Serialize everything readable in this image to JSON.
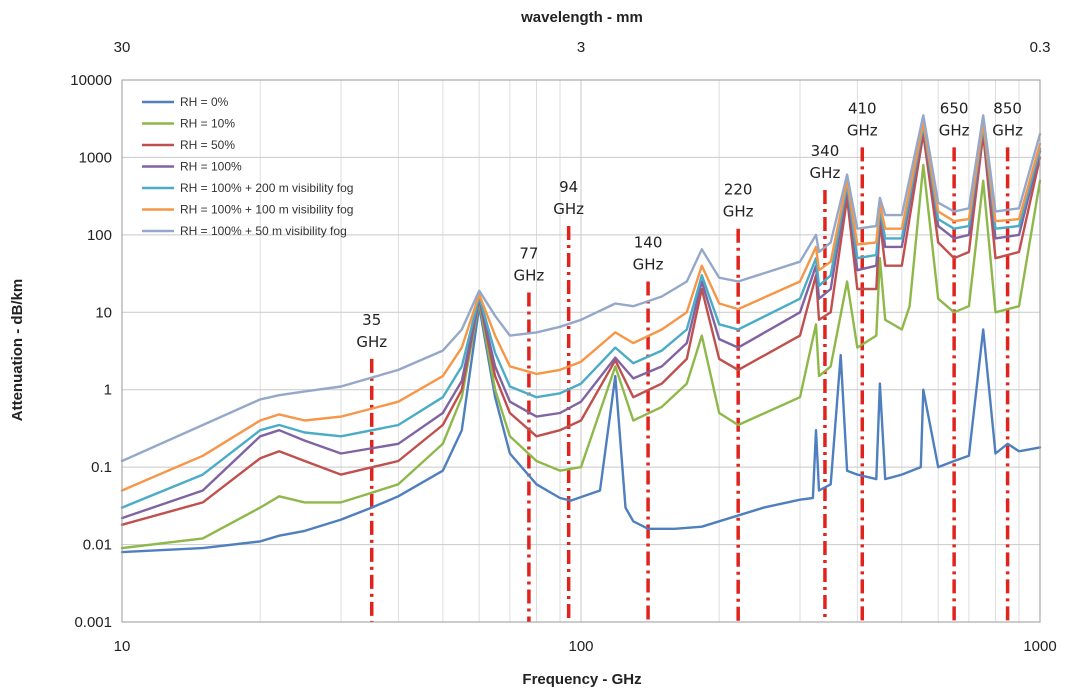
{
  "chart_data": {
    "type": "line",
    "title": "",
    "xlabel": "Frequency - GHz",
    "ylabel": "Attenuation - dB/km",
    "top_axis_label": "wavelength - mm",
    "x_scale": "log",
    "y_scale": "log",
    "xlim": [
      10,
      1000
    ],
    "ylim": [
      0.001,
      10000
    ],
    "x_ticks": [
      "10",
      "100",
      "1000"
    ],
    "y_ticks": [
      "0.001",
      "0.01",
      "0.1",
      "1",
      "10",
      "100",
      "1000",
      "10000"
    ],
    "top_ticks": [
      {
        "label": "30",
        "freq": 10
      },
      {
        "label": "3",
        "freq": 100
      },
      {
        "label": "0.3",
        "freq": 1000
      }
    ],
    "grid": true,
    "legend_position": "top-left",
    "series": [
      {
        "name": "RH = 0%",
        "color": "#4f7fbf",
        "x": [
          10,
          15,
          20,
          22,
          25,
          30,
          35,
          40,
          50,
          55,
          60,
          65,
          70,
          80,
          90,
          95,
          110,
          118.75,
          125,
          130,
          140,
          160,
          183.3,
          200,
          250,
          300,
          320,
          325,
          330,
          350,
          368,
          380,
          400,
          440,
          448,
          460,
          500,
          550,
          557,
          600,
          650,
          700,
          752,
          800,
          850,
          900,
          1000
        ],
        "y": [
          0.008,
          0.009,
          0.011,
          0.013,
          0.015,
          0.021,
          0.03,
          0.042,
          0.09,
          0.3,
          12,
          0.8,
          0.15,
          0.06,
          0.04,
          0.037,
          0.05,
          1.5,
          0.03,
          0.02,
          0.016,
          0.016,
          0.017,
          0.02,
          0.03,
          0.038,
          0.04,
          0.3,
          0.05,
          0.06,
          2.8,
          0.09,
          0.08,
          0.07,
          1.2,
          0.07,
          0.08,
          0.1,
          1.0,
          0.1,
          0.12,
          0.14,
          6,
          0.15,
          0.2,
          0.16,
          0.18
        ]
      },
      {
        "name": "RH = 10%",
        "color": "#8fb84b",
        "x": [
          10,
          15,
          20,
          22,
          25,
          30,
          40,
          50,
          55,
          60,
          65,
          70,
          80,
          90,
          100,
          118.75,
          130,
          150,
          170,
          183.3,
          200,
          220,
          300,
          325,
          330,
          350,
          380,
          400,
          440,
          448,
          460,
          500,
          520,
          557,
          600,
          650,
          700,
          752,
          800,
          900,
          1000
        ],
        "y": [
          0.009,
          0.012,
          0.03,
          0.042,
          0.035,
          0.035,
          0.06,
          0.2,
          0.8,
          14,
          1,
          0.25,
          0.12,
          0.09,
          0.1,
          2.0,
          0.4,
          0.6,
          1.2,
          5.0,
          0.5,
          0.35,
          0.8,
          7,
          1.5,
          2.0,
          25,
          3.5,
          5,
          50,
          8,
          6,
          12,
          800,
          15,
          10,
          12,
          500,
          10,
          12,
          500
        ]
      },
      {
        "name": "RH = 50%",
        "color": "#c0504d",
        "x": [
          10,
          15,
          20,
          22,
          25,
          30,
          40,
          50,
          55,
          60,
          65,
          70,
          80,
          90,
          100,
          118.75,
          130,
          150,
          170,
          183.3,
          200,
          220,
          300,
          325,
          330,
          350,
          380,
          400,
          440,
          448,
          460,
          500,
          557,
          600,
          650,
          700,
          752,
          800,
          900,
          1000
        ],
        "y": [
          0.018,
          0.035,
          0.13,
          0.16,
          0.12,
          0.08,
          0.12,
          0.35,
          1.0,
          15,
          1.5,
          0.5,
          0.25,
          0.3,
          0.4,
          2.4,
          0.8,
          1.2,
          2.5,
          20,
          2.5,
          1.8,
          5,
          30,
          8,
          10,
          300,
          20,
          20,
          150,
          40,
          40,
          2000,
          80,
          50,
          60,
          2000,
          50,
          60,
          1000
        ]
      },
      {
        "name": "RH = 100%",
        "color": "#8064a2",
        "x": [
          10,
          15,
          20,
          22,
          25,
          30,
          40,
          50,
          55,
          60,
          65,
          70,
          80,
          90,
          100,
          118.75,
          130,
          150,
          170,
          183.3,
          200,
          220,
          300,
          325,
          330,
          350,
          380,
          400,
          440,
          448,
          460,
          500,
          557,
          600,
          650,
          700,
          752,
          800,
          900,
          1000
        ],
        "y": [
          0.022,
          0.05,
          0.25,
          0.3,
          0.22,
          0.15,
          0.2,
          0.5,
          1.3,
          15,
          2,
          0.7,
          0.45,
          0.5,
          0.7,
          2.6,
          1.4,
          2,
          4,
          25,
          4.5,
          3.5,
          10,
          40,
          15,
          20,
          400,
          35,
          40,
          200,
          70,
          70,
          2500,
          130,
          90,
          100,
          2500,
          90,
          100,
          1200
        ]
      },
      {
        "name": "RH = 100% + 200 m visibility fog",
        "color": "#4bacc6",
        "x": [
          10,
          15,
          20,
          22,
          25,
          30,
          40,
          50,
          55,
          60,
          65,
          70,
          80,
          90,
          100,
          118.75,
          130,
          150,
          170,
          183.3,
          200,
          220,
          300,
          325,
          330,
          350,
          380,
          400,
          440,
          448,
          460,
          500,
          557,
          600,
          650,
          700,
          752,
          800,
          900,
          1000
        ],
        "y": [
          0.03,
          0.08,
          0.3,
          0.35,
          0.28,
          0.25,
          0.35,
          0.8,
          2,
          16,
          3,
          1.1,
          0.8,
          0.9,
          1.2,
          3.5,
          2.2,
          3.2,
          6,
          30,
          7,
          6,
          15,
          50,
          22,
          30,
          450,
          50,
          55,
          220,
          90,
          90,
          2600,
          160,
          120,
          130,
          2600,
          120,
          130,
          1300
        ]
      },
      {
        "name": "RH = 100% + 100 m visibility fog",
        "color": "#f79646",
        "x": [
          10,
          15,
          20,
          22,
          25,
          30,
          40,
          50,
          55,
          60,
          65,
          70,
          80,
          90,
          100,
          118.75,
          130,
          150,
          170,
          183.3,
          200,
          220,
          300,
          325,
          330,
          350,
          380,
          400,
          440,
          448,
          460,
          500,
          557,
          600,
          650,
          700,
          752,
          800,
          900,
          1000
        ],
        "y": [
          0.05,
          0.14,
          0.4,
          0.48,
          0.4,
          0.45,
          0.7,
          1.5,
          3.5,
          17,
          5,
          2,
          1.6,
          1.8,
          2.3,
          5.5,
          4,
          6,
          10,
          40,
          13,
          11,
          25,
          70,
          35,
          45,
          500,
          75,
          80,
          250,
          120,
          120,
          2800,
          200,
          150,
          160,
          2800,
          150,
          160,
          1500
        ]
      },
      {
        "name": "RH = 100% + 50 m visibility fog",
        "color": "#95a8c9",
        "x": [
          10,
          15,
          20,
          22,
          25,
          30,
          40,
          50,
          55,
          60,
          65,
          70,
          80,
          90,
          100,
          118.75,
          130,
          150,
          170,
          183.3,
          200,
          220,
          300,
          325,
          330,
          350,
          380,
          400,
          440,
          448,
          460,
          500,
          557,
          600,
          650,
          700,
          752,
          800,
          900,
          1000
        ],
        "y": [
          0.12,
          0.35,
          0.75,
          0.85,
          0.95,
          1.1,
          1.8,
          3.2,
          6,
          19,
          9,
          5,
          5.5,
          6.5,
          8,
          13,
          12,
          16,
          25,
          65,
          28,
          25,
          45,
          100,
          60,
          80,
          600,
          120,
          130,
          300,
          180,
          180,
          3500,
          260,
          200,
          220,
          3500,
          200,
          220,
          2000
        ]
      }
    ],
    "vertical_markers": [
      {
        "freq": 35,
        "label_line1": "35",
        "label_line2": "GHz",
        "top": 2.5
      },
      {
        "freq": 77,
        "label_line1": "77",
        "label_line2": "GHz",
        "top": 18
      },
      {
        "freq": 94,
        "label_line1": "94",
        "label_line2": "GHz",
        "top": 130
      },
      {
        "freq": 140,
        "label_line1": "140",
        "label_line2": "GHz",
        "top": 25
      },
      {
        "freq": 220,
        "label_line1": "220",
        "label_line2": "GHz",
        "top": 120
      },
      {
        "freq": 340,
        "label_line1": "340",
        "label_line2": "GHz",
        "top": 380
      },
      {
        "freq": 410,
        "label_line1": "410",
        "label_line2": "GHz",
        "top": 1350
      },
      {
        "freq": 650,
        "label_line1": "650",
        "label_line2": "GHz",
        "top": 1350
      },
      {
        "freq": 850,
        "label_line1": "850",
        "label_line2": "GHz",
        "top": 1350
      }
    ],
    "marker_color": "#e0231c"
  }
}
